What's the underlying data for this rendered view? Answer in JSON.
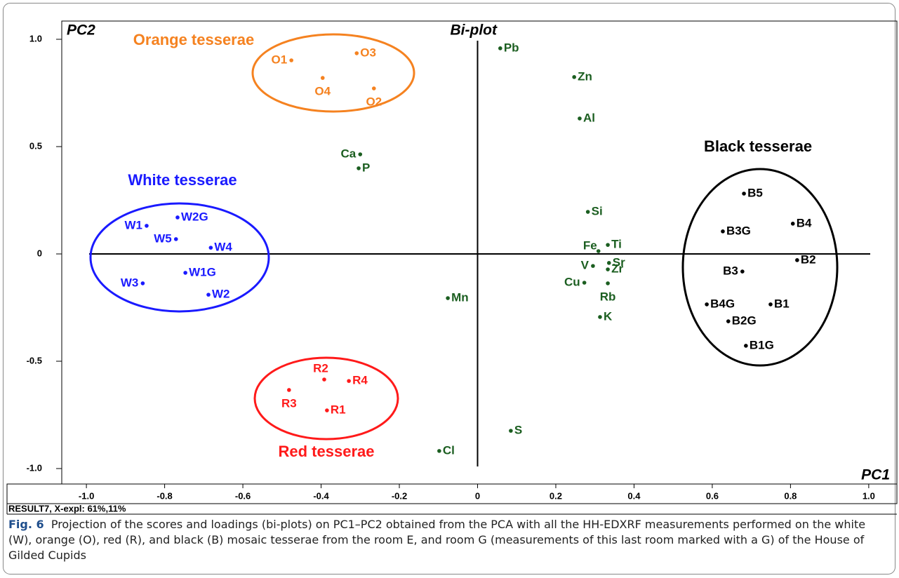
{
  "chart_data": {
    "type": "scatter",
    "plot_title": "Bi-plot",
    "x_label": "PC1",
    "y_label": "PC2",
    "footnote": "RESULT7, X-expl: 61%,11%",
    "xlim": [
      -1.063,
      1.072
    ],
    "ylim": [
      -1.072,
      1.085
    ],
    "xticks": [
      {
        "value": -1,
        "label": "-1.0"
      },
      -0.8,
      -0.6,
      -0.4,
      -0.2,
      0,
      0.2,
      0.4,
      0.6,
      0.8,
      {
        "value": 1,
        "label": "1.0"
      }
    ],
    "yticks": [
      {
        "value": 1,
        "label": "1.0"
      },
      0.5,
      0,
      -0.5,
      {
        "value": -1,
        "label": "-1.0"
      }
    ],
    "series": [
      {
        "name": "Orange tesserae",
        "color": "#f58220",
        "x": [
          -0.476,
          -0.309,
          -0.396,
          -0.265
        ],
        "values": [
          0.902,
          0.935,
          0.82,
          0.771
        ],
        "labels": [
          "O1",
          "O3",
          "O4",
          "O2"
        ]
      },
      {
        "color": "#1b5e20",
        "x": [
          0.058,
          0.247,
          0.261,
          -0.3,
          -0.304,
          0.282,
          0.333,
          0.309,
          0.336,
          0.295,
          0.333,
          0.273,
          0.333,
          0.313,
          -0.076,
          0.085,
          -0.098
        ],
        "values": [
          0.958,
          0.824,
          0.631,
          0.464,
          0.399,
          0.196,
          0.042,
          0.013,
          -0.042,
          -0.056,
          -0.072,
          -0.134,
          -0.137,
          -0.294,
          -0.206,
          -0.824,
          -0.918
        ],
        "labels": [
          "Pb",
          "Zn",
          "Al",
          "Ca",
          "P",
          "Si",
          "Ti",
          "Fe",
          "Sr",
          "V",
          "Zr",
          "Cu",
          "Rb",
          "K",
          "Mn",
          "S",
          "Cl"
        ]
      },
      {
        "name": "White tesserae",
        "color": "#1a1aff",
        "x": [
          -0.846,
          -0.767,
          -0.771,
          -0.682,
          -0.747,
          -0.856,
          -0.688
        ],
        "values": [
          0.131,
          0.17,
          0.069,
          0.029,
          -0.088,
          -0.137,
          -0.19
        ],
        "labels": [
          "W1",
          "W2G",
          "W5",
          "W4",
          "W1G",
          "W3",
          "W2"
        ]
      },
      {
        "name": "Red tesserae",
        "color": "#ff1a1a",
        "x": [
          -0.392,
          -0.329,
          -0.482,
          -0.385
        ],
        "values": [
          -0.585,
          -0.592,
          -0.634,
          -0.729
        ],
        "labels": [
          "R2",
          "R4",
          "R3",
          "R1"
        ]
      },
      {
        "name": "Black tesserae",
        "color": "#000000",
        "x": [
          0.681,
          0.806,
          0.627,
          0.817,
          0.677,
          0.586,
          0.749,
          0.641,
          0.686
        ],
        "values": [
          0.281,
          0.141,
          0.105,
          -0.029,
          -0.082,
          -0.235,
          -0.235,
          -0.314,
          -0.428
        ],
        "labels": [
          "B5",
          "B4",
          "B3G",
          "B2",
          "B3",
          "B4G",
          "B1",
          "B2G",
          "B1G"
        ]
      }
    ]
  },
  "caption": {
    "label": "Fig. 6",
    "text": "Projection of the scores and loadings (bi-plots) on PC1–PC2 obtained from the PCA with all the HH-EDXRF measurements performed on the white (W), orange (O), red (R), and black (B) mosaic tesserae from the room E, and room G (measurements of this last room marked with a G) of the House of Gilded Cupids"
  }
}
